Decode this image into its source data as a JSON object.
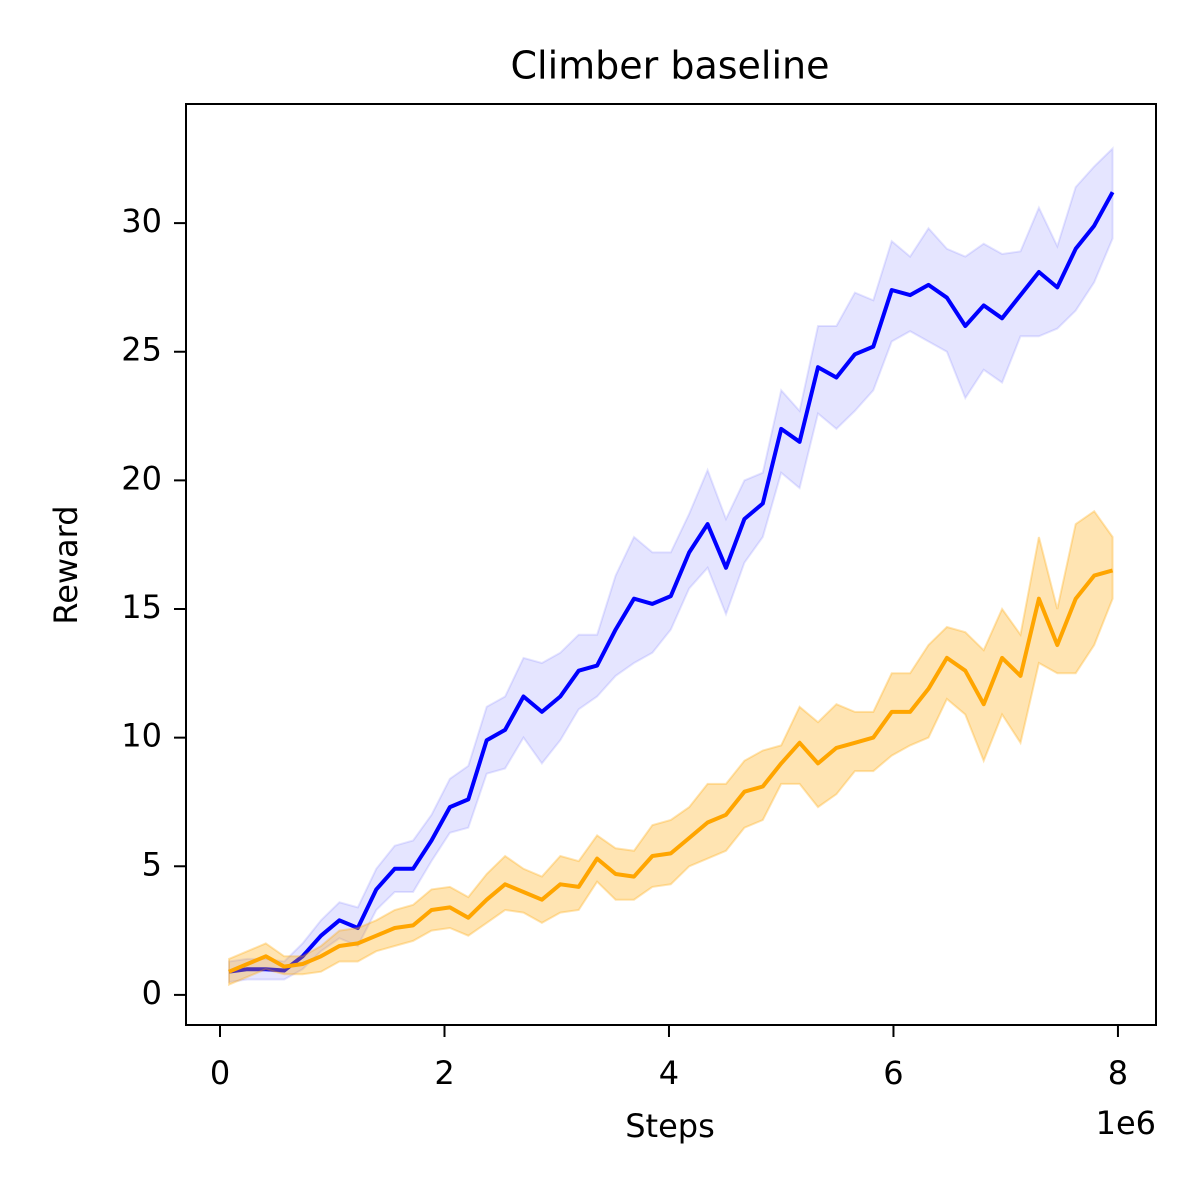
{
  "chart_data": {
    "type": "line",
    "title": "Climber baseline",
    "xlabel": "Steps",
    "ylabel": "Reward",
    "x_offset_label": "1e6",
    "x": [
      0.08,
      0.244,
      0.408,
      0.572,
      0.736,
      0.9,
      1.064,
      1.228,
      1.392,
      1.556,
      1.72,
      1.884,
      2.048,
      2.212,
      2.376,
      2.54,
      2.704,
      2.868,
      3.032,
      3.196,
      3.36,
      3.524,
      3.688,
      3.852,
      4.016,
      4.18,
      4.344,
      4.508,
      4.672,
      4.836,
      5.0,
      5.164,
      5.328,
      5.492,
      5.656,
      5.82,
      5.984,
      6.148,
      6.312,
      6.476,
      6.64,
      6.804,
      6.968,
      7.132,
      7.296,
      7.46,
      7.624,
      7.788,
      7.952
    ],
    "series": [
      {
        "color": "#0000ff",
        "band_opacity": 0.1,
        "values": [
          0.9,
          1.0,
          1.0,
          0.95,
          1.5,
          2.3,
          2.9,
          2.6,
          4.1,
          4.9,
          4.9,
          6.0,
          7.3,
          7.6,
          9.9,
          10.3,
          11.6,
          11.0,
          11.6,
          12.6,
          12.8,
          14.2,
          15.4,
          15.2,
          15.5,
          17.2,
          18.3,
          16.6,
          18.5,
          19.1,
          22.0,
          21.5,
          24.4,
          24.0,
          24.9,
          25.2,
          27.4,
          27.2,
          27.6,
          27.1,
          26.0,
          26.8,
          26.3,
          27.2,
          28.1,
          27.5,
          29.0,
          29.9,
          31.2
        ],
        "upper": [
          1.3,
          1.4,
          1.4,
          1.3,
          2.0,
          2.9,
          3.6,
          3.4,
          4.9,
          5.8,
          6.0,
          7.0,
          8.4,
          8.9,
          11.2,
          11.6,
          13.1,
          12.9,
          13.3,
          14.0,
          14.0,
          16.3,
          17.8,
          17.2,
          17.2,
          18.7,
          20.4,
          18.5,
          20.0,
          20.3,
          23.5,
          22.7,
          26.0,
          26.0,
          27.3,
          27.0,
          29.3,
          28.7,
          29.8,
          29.0,
          28.7,
          29.2,
          28.8,
          28.9,
          30.6,
          29.1,
          31.4,
          32.2,
          32.9
        ],
        "lower": [
          0.5,
          0.6,
          0.6,
          0.6,
          1.0,
          1.7,
          2.2,
          1.9,
          3.3,
          4.0,
          4.0,
          5.2,
          6.3,
          6.5,
          8.6,
          8.8,
          10.0,
          9.0,
          9.9,
          11.1,
          11.6,
          12.4,
          12.9,
          13.3,
          14.2,
          15.8,
          16.6,
          14.8,
          16.8,
          17.8,
          20.3,
          19.7,
          22.6,
          22.0,
          22.7,
          23.5,
          25.4,
          25.8,
          25.4,
          25.0,
          23.2,
          24.3,
          23.8,
          25.6,
          25.6,
          25.9,
          26.6,
          27.7,
          29.4
        ]
      },
      {
        "color": "#ffa500",
        "band_opacity": 0.3,
        "values": [
          0.9,
          1.2,
          1.5,
          1.1,
          1.2,
          1.5,
          1.9,
          2.0,
          2.3,
          2.6,
          2.7,
          3.3,
          3.4,
          3.0,
          3.7,
          4.3,
          4.0,
          3.7,
          4.3,
          4.2,
          5.3,
          4.7,
          4.6,
          5.4,
          5.5,
          6.1,
          6.7,
          7.0,
          7.9,
          8.1,
          9.0,
          9.8,
          9.0,
          9.6,
          9.8,
          10.0,
          11.0,
          11.0,
          11.9,
          13.1,
          12.6,
          11.3,
          13.1,
          12.4,
          15.4,
          13.6,
          15.4,
          16.3,
          16.5
        ],
        "upper": [
          1.4,
          1.7,
          2.0,
          1.5,
          1.5,
          1.9,
          2.5,
          2.6,
          2.9,
          3.3,
          3.5,
          4.1,
          4.2,
          3.8,
          4.7,
          5.4,
          4.9,
          4.6,
          5.4,
          5.2,
          6.2,
          5.7,
          5.6,
          6.6,
          6.8,
          7.3,
          8.2,
          8.2,
          9.1,
          9.5,
          9.7,
          11.2,
          10.6,
          11.3,
          11.0,
          11.0,
          12.5,
          12.5,
          13.6,
          14.3,
          14.1,
          13.4,
          15.0,
          14.0,
          17.8,
          15.0,
          18.3,
          18.8,
          17.8
        ],
        "lower": [
          0.4,
          0.7,
          1.0,
          0.8,
          0.8,
          0.9,
          1.3,
          1.3,
          1.7,
          1.9,
          2.1,
          2.5,
          2.6,
          2.3,
          2.8,
          3.3,
          3.2,
          2.8,
          3.2,
          3.3,
          4.4,
          3.7,
          3.7,
          4.2,
          4.3,
          5.0,
          5.3,
          5.6,
          6.5,
          6.8,
          8.2,
          8.2,
          7.3,
          7.8,
          8.7,
          8.7,
          9.3,
          9.7,
          10.0,
          11.5,
          10.9,
          9.1,
          10.9,
          9.8,
          12.9,
          12.5,
          12.5,
          13.6,
          15.4
        ]
      }
    ],
    "xlim": [
      -0.303,
      8.339
    ],
    "xticks": [
      0,
      2,
      4,
      6,
      8
    ],
    "ylim": [
      -1.17,
      34.63
    ],
    "yticks": [
      0,
      5,
      10,
      15,
      20,
      25,
      30
    ],
    "grid": false
  }
}
